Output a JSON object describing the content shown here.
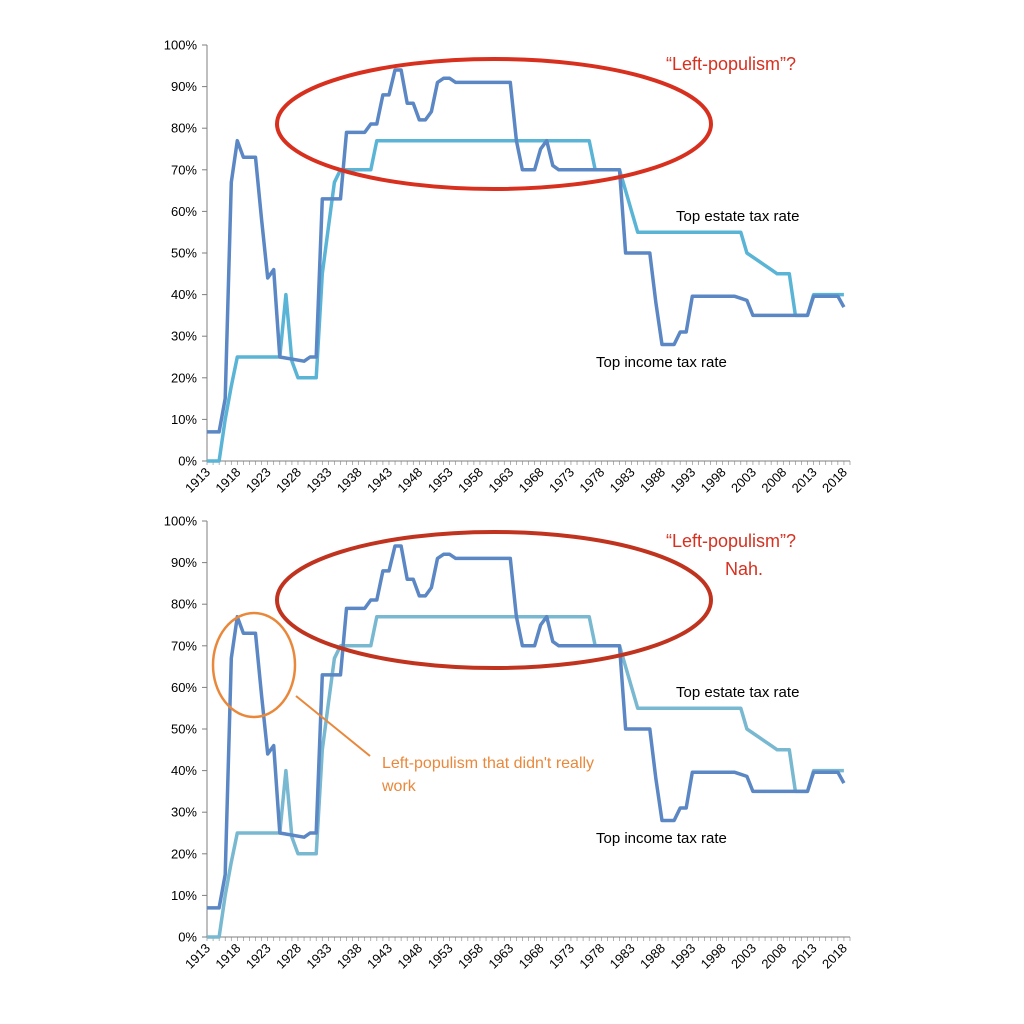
{
  "colors": {
    "income_line": "#5b87c4",
    "estate_line": "#5ab4d6",
    "estate_line_bottom": "#78b8d0",
    "axis": "#7f7f7f",
    "red": "#d7301f",
    "orange": "#e9883b"
  },
  "chart_data": [
    {
      "type": "line",
      "title": "",
      "xlabel": "",
      "ylabel": "",
      "ylim": [
        0,
        100
      ],
      "y_unit": "%",
      "xlim": [
        1913,
        2019
      ],
      "x_tick_labels": [
        "1913",
        "1918",
        "1923",
        "1928",
        "1933",
        "1938",
        "1943",
        "1948",
        "1953",
        "1958",
        "1963",
        "1968",
        "1973",
        "1978",
        "1983",
        "1988",
        "1993",
        "1998",
        "2003",
        "2008",
        "2013",
        "2018"
      ],
      "y_tick_labels": [
        "0%",
        "10%",
        "20%",
        "30%",
        "40%",
        "50%",
        "60%",
        "70%",
        "80%",
        "90%",
        "100%"
      ],
      "grid": false,
      "series": [
        {
          "name": "Top income tax rate",
          "points": [
            [
              1913,
              7
            ],
            [
              1915,
              7
            ],
            [
              1916,
              15
            ],
            [
              1917,
              67
            ],
            [
              1918,
              77
            ],
            [
              1919,
              73
            ],
            [
              1921,
              73
            ],
            [
              1922,
              58
            ],
            [
              1923,
              44
            ],
            [
              1924,
              46
            ],
            [
              1925,
              25
            ],
            [
              1929,
              24
            ],
            [
              1930,
              25
            ],
            [
              1931,
              25
            ],
            [
              1932,
              63
            ],
            [
              1935,
              63
            ],
            [
              1936,
              79
            ],
            [
              1939,
              79
            ],
            [
              1940,
              81
            ],
            [
              1941,
              81
            ],
            [
              1942,
              88
            ],
            [
              1943,
              88
            ],
            [
              1944,
              94
            ],
            [
              1945,
              94
            ],
            [
              1946,
              86
            ],
            [
              1947,
              86
            ],
            [
              1948,
              82
            ],
            [
              1949,
              82
            ],
            [
              1950,
              84
            ],
            [
              1951,
              91
            ],
            [
              1952,
              92
            ],
            [
              1953,
              92
            ],
            [
              1954,
              91
            ],
            [
              1963,
              91
            ],
            [
              1964,
              77
            ],
            [
              1965,
              70
            ],
            [
              1967,
              70
            ],
            [
              1968,
              75
            ],
            [
              1969,
              77
            ],
            [
              1970,
              71
            ],
            [
              1971,
              70
            ],
            [
              1981,
              70
            ],
            [
              1982,
              50
            ],
            [
              1986,
              50
            ],
            [
              1987,
              38
            ],
            [
              1988,
              28
            ],
            [
              1990,
              28
            ],
            [
              1991,
              31
            ],
            [
              1992,
              31
            ],
            [
              1993,
              39.6
            ],
            [
              2000,
              39.6
            ],
            [
              2001,
              39.1
            ],
            [
              2002,
              38.6
            ],
            [
              2003,
              35
            ],
            [
              2012,
              35
            ],
            [
              2013,
              39.6
            ],
            [
              2017,
              39.6
            ],
            [
              2018,
              37
            ]
          ]
        },
        {
          "name": "Top estate tax rate",
          "points": [
            [
              1913,
              0
            ],
            [
              1915,
              0
            ],
            [
              1916,
              10
            ],
            [
              1917,
              18
            ],
            [
              1918,
              25
            ],
            [
              1925,
              25
            ],
            [
              1926,
              40
            ],
            [
              1927,
              24
            ],
            [
              1928,
              20
            ],
            [
              1931,
              20
            ],
            [
              1932,
              45
            ],
            [
              1933,
              56
            ],
            [
              1934,
              67
            ],
            [
              1935,
              70
            ],
            [
              1940,
              70
            ],
            [
              1941,
              77
            ],
            [
              1976,
              77
            ],
            [
              1977,
              70
            ],
            [
              1981,
              70
            ],
            [
              1982,
              65
            ],
            [
              1983,
              60
            ],
            [
              1984,
              55
            ],
            [
              2001,
              55
            ],
            [
              2002,
              50
            ],
            [
              2006,
              46
            ],
            [
              2007,
              45
            ],
            [
              2009,
              45
            ],
            [
              2010,
              35
            ],
            [
              2012,
              35
            ],
            [
              2013,
              40
            ],
            [
              2018,
              40
            ]
          ]
        }
      ],
      "annotations": {
        "estate_label": "Top estate tax rate",
        "income_label": "Top income tax rate",
        "left_populism": "“Left-populism”?"
      }
    },
    {
      "type": "line",
      "title": "",
      "xlabel": "",
      "ylabel": "",
      "ylim": [
        0,
        100
      ],
      "y_unit": "%",
      "xlim": [
        1913,
        2019
      ],
      "x_tick_labels": [
        "1913",
        "1918",
        "1923",
        "1928",
        "1933",
        "1938",
        "1943",
        "1948",
        "1953",
        "1958",
        "1963",
        "1968",
        "1973",
        "1978",
        "1983",
        "1988",
        "1993",
        "1998",
        "2003",
        "2008",
        "2013",
        "2018"
      ],
      "y_tick_labels": [
        "0%",
        "10%",
        "20%",
        "30%",
        "40%",
        "50%",
        "60%",
        "70%",
        "80%",
        "90%",
        "100%"
      ],
      "grid": false,
      "series": [
        {
          "name": "Top income tax rate",
          "points": [
            [
              1913,
              7
            ],
            [
              1915,
              7
            ],
            [
              1916,
              15
            ],
            [
              1917,
              67
            ],
            [
              1918,
              77
            ],
            [
              1919,
              73
            ],
            [
              1921,
              73
            ],
            [
              1922,
              58
            ],
            [
              1923,
              44
            ],
            [
              1924,
              46
            ],
            [
              1925,
              25
            ],
            [
              1929,
              24
            ],
            [
              1930,
              25
            ],
            [
              1931,
              25
            ],
            [
              1932,
              63
            ],
            [
              1935,
              63
            ],
            [
              1936,
              79
            ],
            [
              1939,
              79
            ],
            [
              1940,
              81
            ],
            [
              1941,
              81
            ],
            [
              1942,
              88
            ],
            [
              1943,
              88
            ],
            [
              1944,
              94
            ],
            [
              1945,
              94
            ],
            [
              1946,
              86
            ],
            [
              1947,
              86
            ],
            [
              1948,
              82
            ],
            [
              1949,
              82
            ],
            [
              1950,
              84
            ],
            [
              1951,
              91
            ],
            [
              1952,
              92
            ],
            [
              1953,
              92
            ],
            [
              1954,
              91
            ],
            [
              1963,
              91
            ],
            [
              1964,
              77
            ],
            [
              1965,
              70
            ],
            [
              1967,
              70
            ],
            [
              1968,
              75
            ],
            [
              1969,
              77
            ],
            [
              1970,
              71
            ],
            [
              1971,
              70
            ],
            [
              1981,
              70
            ],
            [
              1982,
              50
            ],
            [
              1986,
              50
            ],
            [
              1987,
              38
            ],
            [
              1988,
              28
            ],
            [
              1990,
              28
            ],
            [
              1991,
              31
            ],
            [
              1992,
              31
            ],
            [
              1993,
              39.6
            ],
            [
              2000,
              39.6
            ],
            [
              2001,
              39.1
            ],
            [
              2002,
              38.6
            ],
            [
              2003,
              35
            ],
            [
              2012,
              35
            ],
            [
              2013,
              39.6
            ],
            [
              2017,
              39.6
            ],
            [
              2018,
              37
            ]
          ]
        },
        {
          "name": "Top estate tax rate",
          "points": [
            [
              1913,
              0
            ],
            [
              1915,
              0
            ],
            [
              1916,
              10
            ],
            [
              1917,
              18
            ],
            [
              1918,
              25
            ],
            [
              1925,
              25
            ],
            [
              1926,
              40
            ],
            [
              1927,
              24
            ],
            [
              1928,
              20
            ],
            [
              1931,
              20
            ],
            [
              1932,
              45
            ],
            [
              1933,
              56
            ],
            [
              1934,
              67
            ],
            [
              1935,
              70
            ],
            [
              1940,
              70
            ],
            [
              1941,
              77
            ],
            [
              1976,
              77
            ],
            [
              1977,
              70
            ],
            [
              1981,
              70
            ],
            [
              1982,
              65
            ],
            [
              1983,
              60
            ],
            [
              1984,
              55
            ],
            [
              2001,
              55
            ],
            [
              2002,
              50
            ],
            [
              2006,
              46
            ],
            [
              2007,
              45
            ],
            [
              2009,
              45
            ],
            [
              2010,
              35
            ],
            [
              2012,
              35
            ],
            [
              2013,
              40
            ],
            [
              2018,
              40
            ]
          ]
        }
      ],
      "annotations": {
        "estate_label": "Top estate tax rate",
        "income_label": "Top income tax rate",
        "left_populism": "“Left-populism”?",
        "nah": "Nah.",
        "failed_line1": "Left-populism that didn't really",
        "failed_line2": "work"
      }
    }
  ]
}
